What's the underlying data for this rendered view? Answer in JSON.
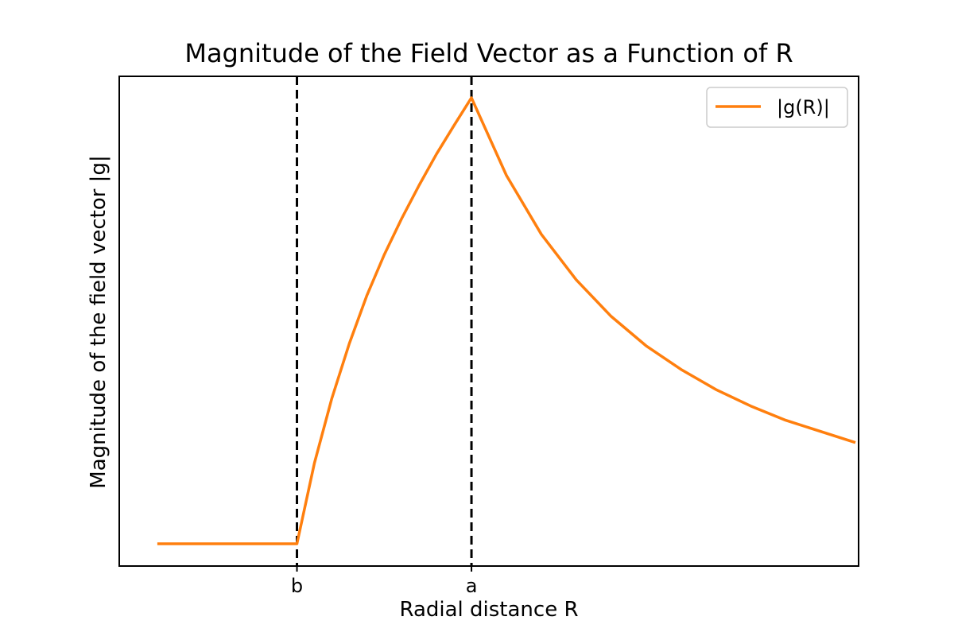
{
  "chart_data": {
    "type": "line",
    "title": "Magnitude of the Field Vector as a Function of R",
    "xlabel": "Radial distance R",
    "ylabel": "Magnitude of the field vector |g|",
    "xlim": [
      0,
      4.2
    ],
    "ylim": [
      0,
      1.05
    ],
    "grid": false,
    "legend_position": "top-right",
    "x_ticks": [
      {
        "label": "b",
        "value": 1
      },
      {
        "label": "a",
        "value": 2
      }
    ],
    "vertical_reference_lines": [
      {
        "label": "b",
        "value": 1,
        "style": "dashed",
        "color": "#000000"
      },
      {
        "label": "a",
        "value": 2,
        "style": "dashed",
        "color": "#000000"
      }
    ],
    "series": [
      {
        "name": "|g(R)|",
        "color": "#ff7f0e",
        "x": [
          0.2,
          0.4,
          0.6,
          0.8,
          1.0,
          1.1,
          1.2,
          1.3,
          1.4,
          1.5,
          1.6,
          1.7,
          1.8,
          1.9,
          2.0,
          2.2,
          2.4,
          2.6,
          2.8,
          3.0,
          3.2,
          3.4,
          3.6,
          3.8,
          4.2
        ],
        "y": [
          0.0,
          0.0,
          0.0,
          0.0,
          0.0,
          0.181,
          0.326,
          0.449,
          0.556,
          0.648,
          0.729,
          0.804,
          0.874,
          0.938,
          1.0,
          0.826,
          0.694,
          0.592,
          0.51,
          0.444,
          0.391,
          0.346,
          0.309,
          0.277,
          0.227
        ]
      }
    ]
  },
  "colors": {
    "series": "#ff7f0e",
    "axis": "#000000",
    "background": "#ffffff"
  }
}
